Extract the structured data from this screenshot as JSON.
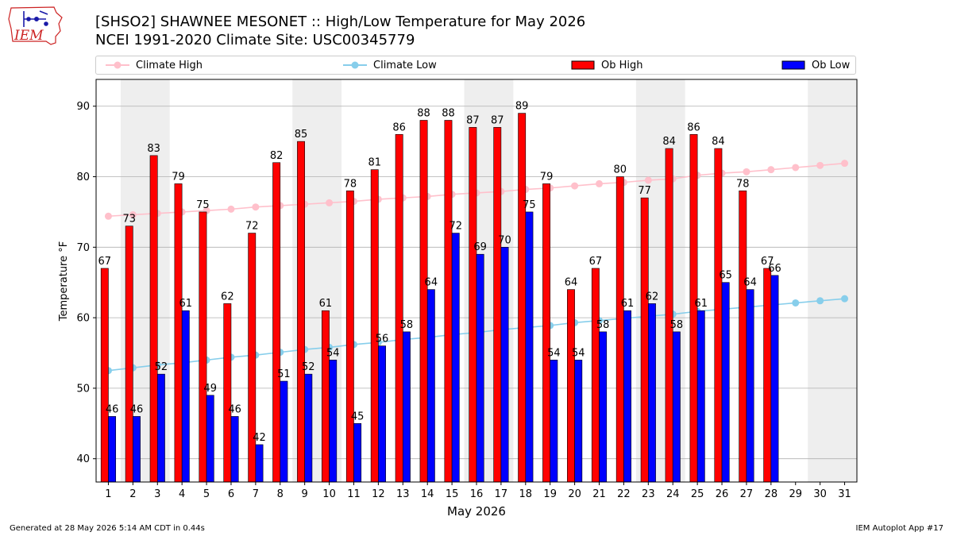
{
  "header": {
    "title_line1": "[SHSO2] SHAWNEE MESONET :: High/Low Temperature for May 2026",
    "title_line2": "NCEI 1991-2020 Climate Site: USC00345779"
  },
  "logo": {
    "text": "IEM",
    "name": "iem-logo"
  },
  "footer": {
    "left": "Generated at 28 May 2026 5:14 AM CDT in 0.44s",
    "right": "IEM Autoplot App #17"
  },
  "colors": {
    "climate_high": "#ffc0cb",
    "climate_low": "#87ceeb",
    "ob_high": "#ff0000",
    "ob_low": "#0000ff",
    "weekend_band": "#eeeeee",
    "grid": "#b0b0b0"
  },
  "chart_data": {
    "type": "bar",
    "xlabel": "May 2026",
    "ylabel": "Temperature °F",
    "ylim": [
      36.7,
      93.8
    ],
    "yticks": [
      40,
      50,
      60,
      70,
      80,
      90
    ],
    "grid": "horizontal",
    "legend_placement": "top",
    "shaded_weekends": [
      [
        2,
        3
      ],
      [
        9,
        10
      ],
      [
        16,
        17
      ],
      [
        23,
        24
      ],
      [
        30,
        31
      ]
    ],
    "categories": [
      "1",
      "2",
      "3",
      "4",
      "5",
      "6",
      "7",
      "8",
      "9",
      "10",
      "11",
      "12",
      "13",
      "14",
      "15",
      "16",
      "17",
      "18",
      "19",
      "20",
      "21",
      "22",
      "23",
      "24",
      "25",
      "26",
      "27",
      "28",
      "29",
      "30",
      "31"
    ],
    "legend": [
      "Climate High",
      "Climate Low",
      "Ob High",
      "Ob Low"
    ],
    "series": [
      {
        "name": "Climate High",
        "kind": "line",
        "values": [
          74.4,
          74.6,
          74.8,
          75.0,
          75.2,
          75.4,
          75.7,
          75.9,
          76.1,
          76.3,
          76.5,
          76.8,
          77.0,
          77.2,
          77.5,
          77.7,
          77.9,
          78.2,
          78.4,
          78.7,
          79.0,
          79.2,
          79.5,
          79.7,
          80.2,
          80.5,
          80.7,
          81.0,
          81.3,
          81.6,
          81.9
        ]
      },
      {
        "name": "Climate Low",
        "kind": "line",
        "values": [
          52.5,
          52.9,
          53.3,
          53.6,
          54.0,
          54.4,
          54.7,
          55.1,
          55.5,
          55.8,
          56.2,
          56.5,
          56.9,
          57.2,
          57.6,
          57.9,
          58.3,
          58.6,
          58.9,
          59.3,
          59.6,
          59.9,
          60.2,
          60.5,
          60.9,
          61.2,
          61.5,
          61.8,
          62.1,
          62.4,
          62.7
        ]
      },
      {
        "name": "Ob High",
        "kind": "bar",
        "values": [
          67,
          73,
          83,
          79,
          75,
          62,
          72,
          82,
          85,
          61,
          78,
          81,
          86,
          88,
          88,
          87,
          87,
          89,
          79,
          64,
          67,
          80,
          77,
          84,
          86,
          84,
          78,
          67,
          null,
          null,
          null
        ],
        "data_labels": [
          "67",
          "73",
          "83",
          "79",
          "75",
          "62",
          "72",
          "82",
          "85",
          "61",
          "78",
          "81",
          "86",
          "88",
          "88",
          "87",
          "87",
          "89",
          "79",
          "64",
          "67",
          "80",
          "77",
          "84",
          "86",
          "84",
          "78",
          "67"
        ]
      },
      {
        "name": "Ob Low",
        "kind": "bar",
        "values": [
          46,
          46,
          52,
          61,
          49,
          46,
          42,
          51,
          52,
          54,
          45,
          56,
          58,
          64,
          72,
          69,
          70,
          75,
          54,
          54,
          58,
          61,
          62,
          58,
          61,
          65,
          64,
          66,
          null,
          null,
          null
        ],
        "data_labels": [
          "46",
          "46",
          "52",
          "61",
          "49",
          "46",
          "42",
          "51",
          "52",
          "54",
          "45",
          "56",
          "58",
          "64",
          "72",
          "69",
          "70",
          "75",
          "54",
          "54",
          "58",
          "61",
          "62",
          "58",
          "61",
          "65",
          "64",
          "66"
        ]
      }
    ]
  }
}
